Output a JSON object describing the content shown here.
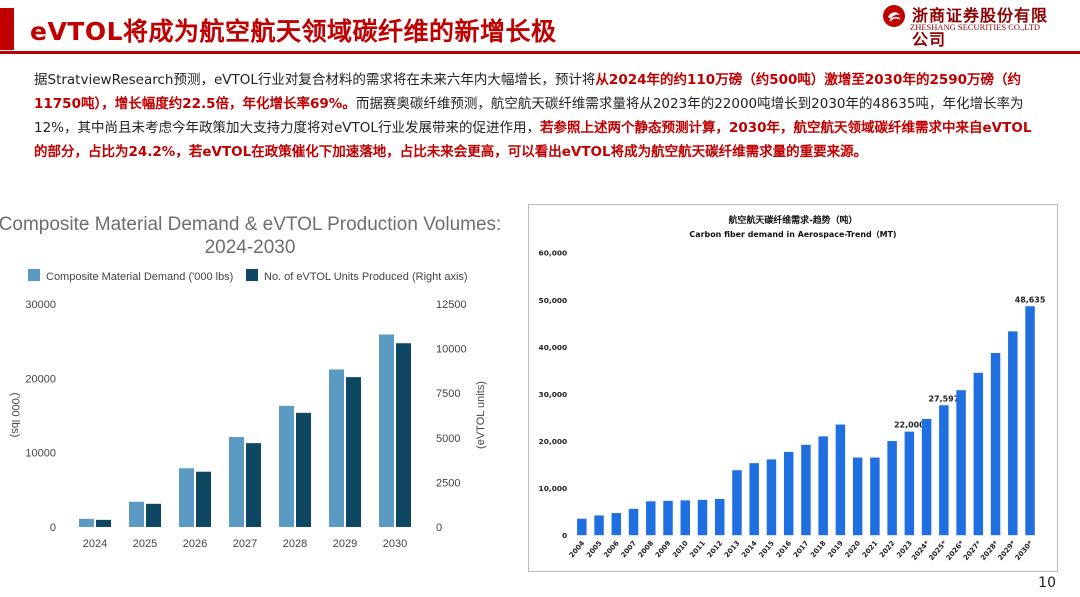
{
  "header": {
    "title": "eVTOL将成为航空航天领域碳纤维的新增长极",
    "logo_cn": "浙商证券股份有限公司",
    "logo_en": "ZHESHANG SECURITIES CO.,LTD",
    "brand_color": "#c00000"
  },
  "body": {
    "p1": "据StratviewResearch预测，eVTOL行业对复合材料的需求将在未来六年内大幅增长，预计将",
    "p1_hl": "从2024年的约110万磅（约500吨）激增至2030年的2590万磅（约11750吨），增长幅度约22.5倍，年化增长率69%。",
    "p2": "而据赛奥碳纤维预测，航空航天碳纤维需求量将从2023年的22000吨增长到2030年的48635吨，年化增长率为12%，其中尚且未考虑今年政策加大支持力度将对eVTOL行业发展带来的促进作用，",
    "p2_hl": "若参照上述两个静态预测计算，2030年，航空航天领域碳纤维需求中来自eVTOL的部分，占比为24.2%，若eVTOL在政策催化下加速落地，占比未来会更高，可以看出eVTOL将成为航空航天碳纤维需求量的重要来源。"
  },
  "page_number": "10",
  "chart_data": [
    {
      "type": "bar",
      "title": "Composite Material Demand & eVTOL Production Volumes: 2024-2030",
      "title_line1": "Composite Material Demand & eVTOL Production Volumes:",
      "title_line2": "2024-2030",
      "categories": [
        "2024",
        "2025",
        "2026",
        "2027",
        "2028",
        "2029",
        "2030"
      ],
      "series": [
        {
          "name": "Composite Material Demand ('000 lbs)",
          "axis": "left",
          "color": "#5b9bc3",
          "values": [
            1100,
            3400,
            7900,
            12100,
            16300,
            21200,
            25900
          ]
        },
        {
          "name": "No. of eVTOL Units Produced (Right axis)",
          "axis": "right",
          "color": "#0d4762",
          "values": [
            400,
            1300,
            3100,
            4700,
            6400,
            8400,
            10300
          ]
        }
      ],
      "ylabel": "('000 lbs)",
      "y2label": "(eVTOL units)",
      "ylim": [
        0,
        30000
      ],
      "y2lim": [
        0,
        12500
      ],
      "yticks": [
        "0",
        "10000",
        "20000",
        "30000"
      ],
      "y2ticks": [
        "0",
        "2500",
        "5000",
        "7500",
        "10000",
        "12500"
      ],
      "legend_position": "top",
      "grid": false
    },
    {
      "type": "bar",
      "title": "航空航天碳纤维需求-趋势（吨）",
      "subtitle": "Carbon fiber demand in Aerospace-Trend（MT)",
      "categories": [
        "2004",
        "2005",
        "2006",
        "2007",
        "2008",
        "2009",
        "2010",
        "2011",
        "2012",
        "2013",
        "2014",
        "2015",
        "2016",
        "2017",
        "2018",
        "2019",
        "2020",
        "2021",
        "2022",
        "2023",
        "2024*",
        "2025*",
        "2026*",
        "2027*",
        "2028*",
        "2029*",
        "2030*"
      ],
      "values": [
        3500,
        4200,
        4700,
        5600,
        7200,
        7300,
        7400,
        7500,
        7700,
        13800,
        15300,
        16100,
        17700,
        19200,
        21000,
        23500,
        16500,
        16500,
        20000,
        22000,
        24700,
        27597,
        30800,
        34500,
        38700,
        43300,
        48635
      ],
      "data_labels": {
        "19": "22,000",
        "21": "27,597",
        "26": "48,635"
      },
      "ylim": [
        0,
        60000
      ],
      "yticks": [
        "0",
        "10,000",
        "20,000",
        "30,000",
        "40,000",
        "50,000",
        "60,000"
      ],
      "bar_color": "#1f6fe0",
      "grid": false
    }
  ]
}
